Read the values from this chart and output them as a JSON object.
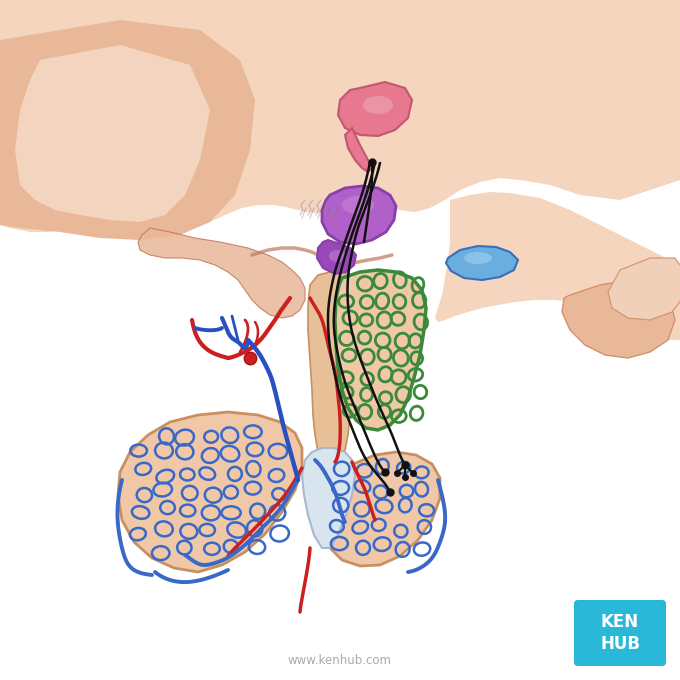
{
  "bg": "#ffffff",
  "kenhub_blue": "#29b8d8",
  "skin_light": "#f5d5be",
  "skin_mid": "#e8b898",
  "skin_dark": "#d49070",
  "skin_shadow": "#c07858",
  "pit_fill": "#f0c8a8",
  "pit_outline": "#c89060",
  "stalk_fill": "#e8c098",
  "center_fill": "#d8e4ee",
  "center_outline": "#a8b8cc",
  "purple_main": "#b060c8",
  "purple_dark": "#8840a8",
  "purple_light": "#cc88d8",
  "pink_main": "#e87890",
  "pink_light": "#f0a8b8",
  "blue_drop": "#6aaee0",
  "blue_drop_light": "#9ccef0",
  "green_net": "#3a8a3a",
  "green_net_fill": "#f0c8a8",
  "red_art": "#cc2020",
  "blue_vein": "#2850c0",
  "blue_cap": "#3868c8",
  "nerve_col": "#111111",
  "watermark": "www.kenhub.com"
}
